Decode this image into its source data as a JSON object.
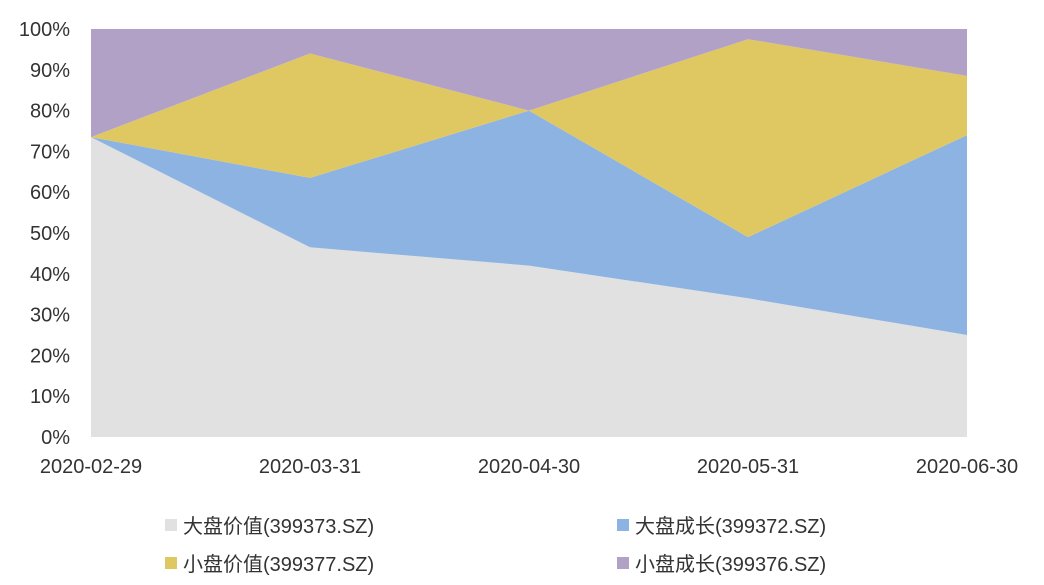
{
  "chart_data": {
    "type": "area",
    "stacked": true,
    "normalized": true,
    "x": [
      "2020-02-29",
      "2020-03-31",
      "2020-04-30",
      "2020-05-31",
      "2020-06-30"
    ],
    "ylim": [
      0,
      100
    ],
    "yticks": [
      "0%",
      "10%",
      "20%",
      "30%",
      "40%",
      "50%",
      "60%",
      "70%",
      "80%",
      "90%",
      "100%"
    ],
    "grid": false,
    "legend_position": "bottom",
    "series": [
      {
        "name": "大盘价值(399373.SZ)",
        "color": "#e1e1e1",
        "values": [
          73.5,
          46.5,
          42,
          34,
          25
        ]
      },
      {
        "name": "大盘成长(399372.SZ)",
        "color": "#8db3e2",
        "values": [
          0,
          17,
          38,
          15,
          49
        ]
      },
      {
        "name": "小盘价值(399377.SZ)",
        "color": "#dfc862",
        "values": [
          0,
          30.5,
          0,
          48.5,
          14.5
        ]
      },
      {
        "name": "小盘成长(399376.SZ)",
        "color": "#b2a1c7",
        "values": [
          26.5,
          6,
          20,
          2.5,
          11.5
        ]
      }
    ]
  }
}
